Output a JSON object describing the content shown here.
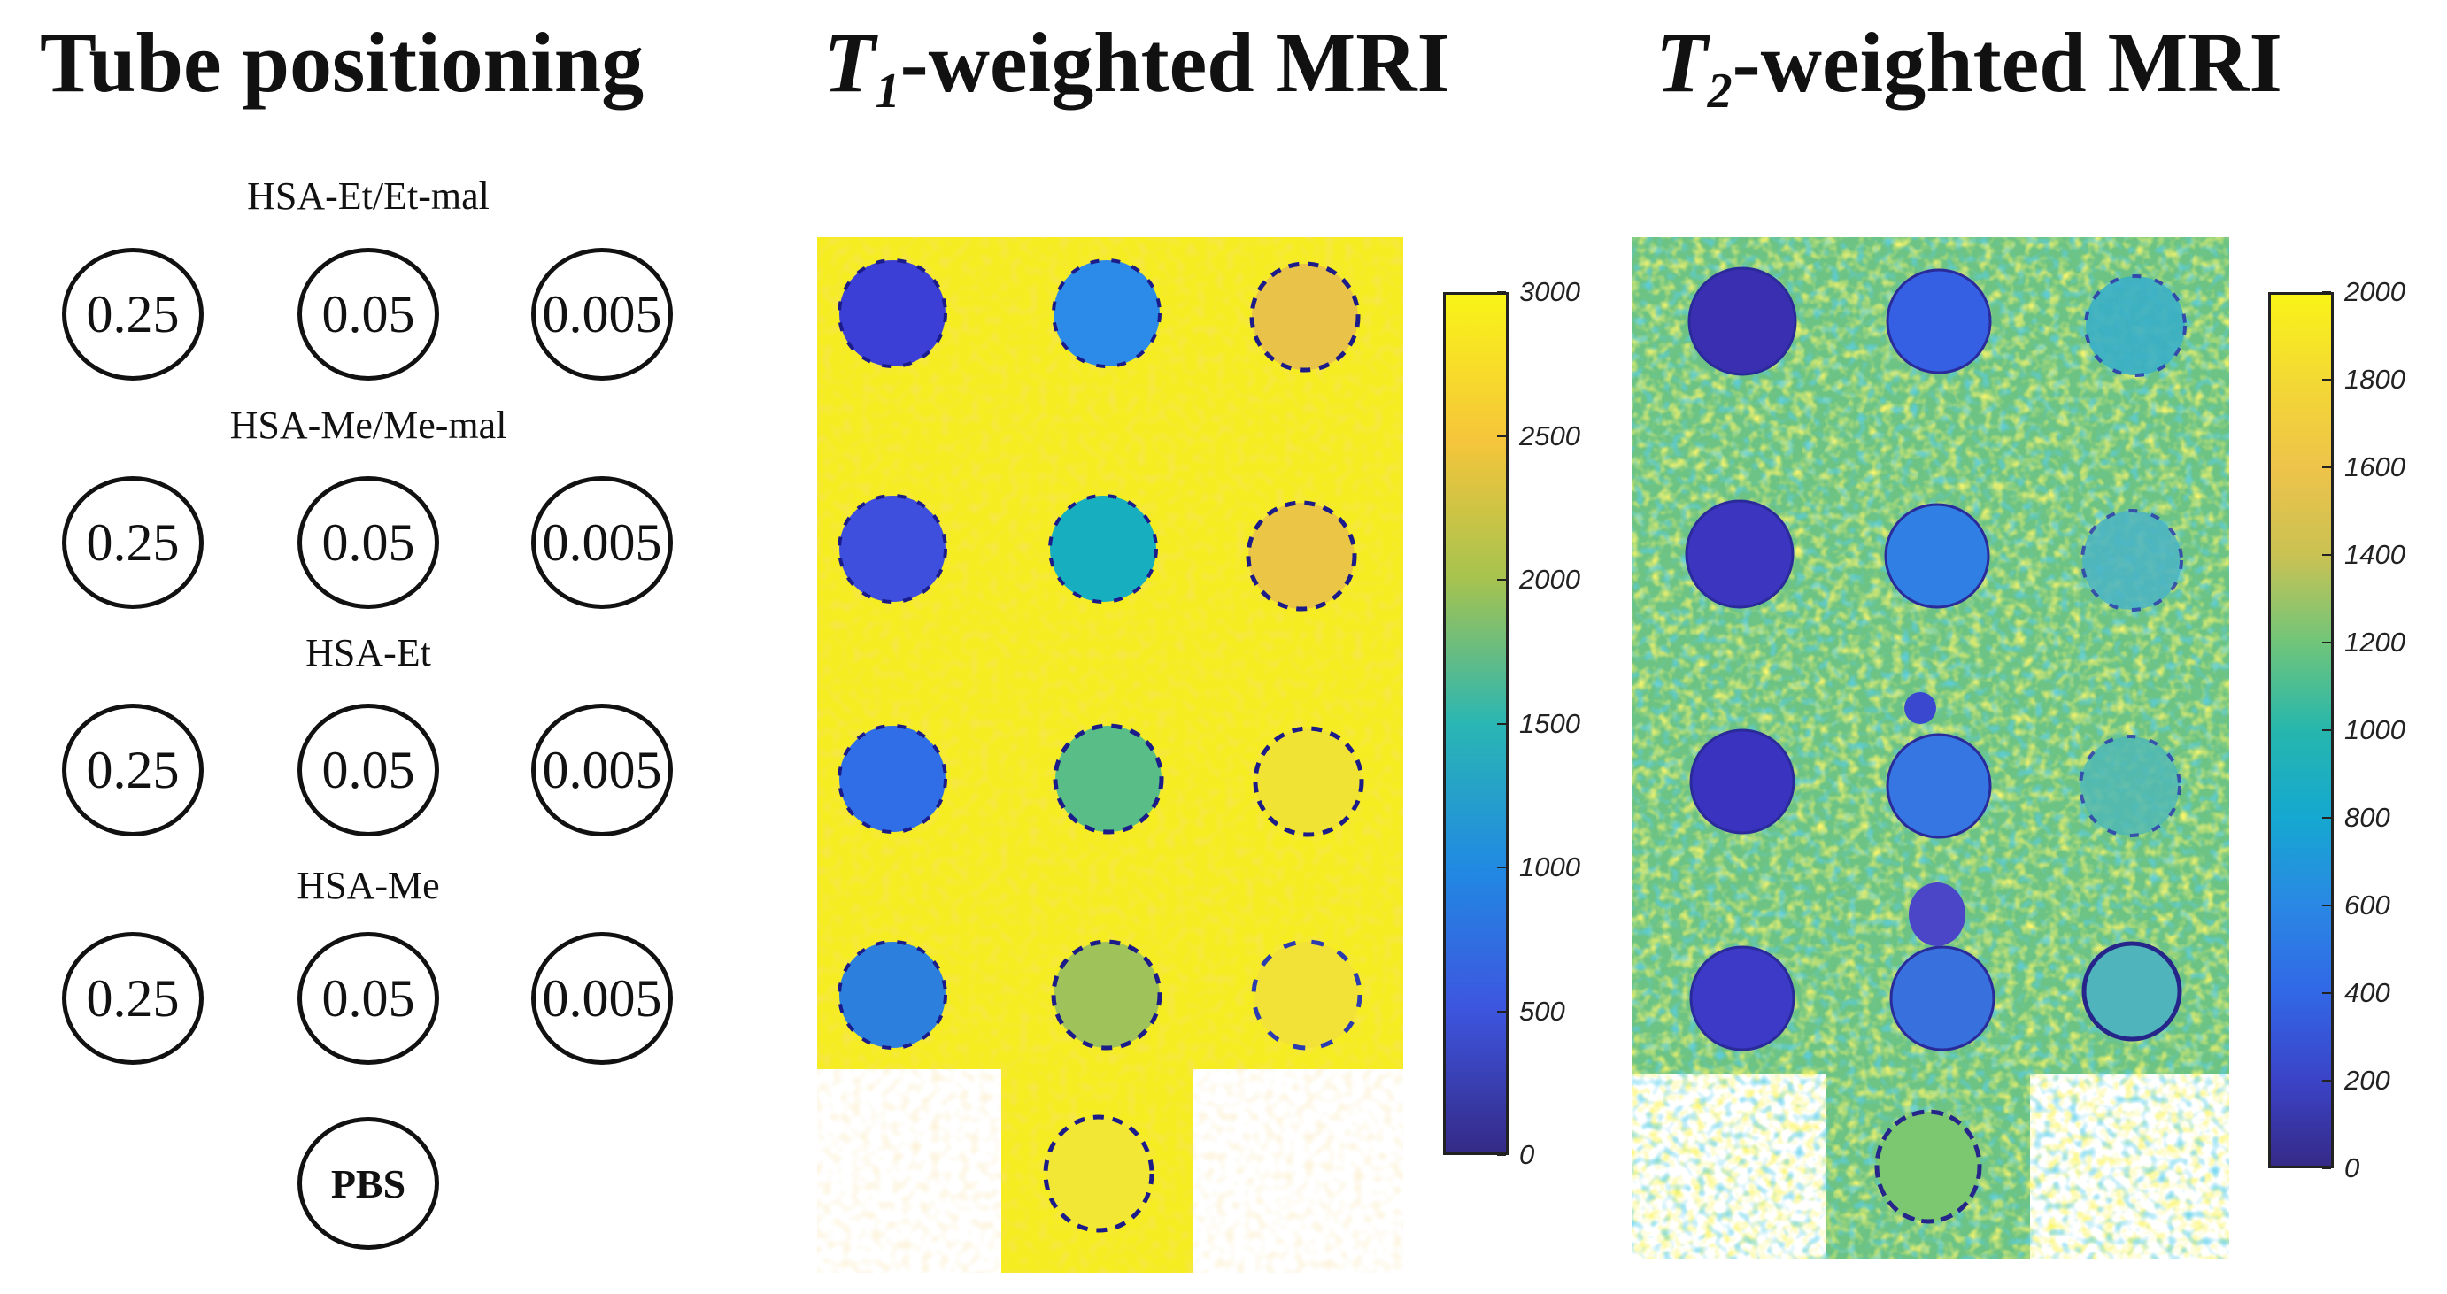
{
  "titles": {
    "tube_positioning": "Tube positioning",
    "t1_letter": "T",
    "t1_sub": "1",
    "t1_rest": "-weighted MRI",
    "t2_letter": "T",
    "t2_sub": "2",
    "t2_rest": "-weighted MRI"
  },
  "groups": [
    {
      "label": "HSA-Et/Et-mal",
      "concentrations": [
        "0.25",
        "0.05",
        "0.005"
      ]
    },
    {
      "label": "HSA-Me/Me-mal",
      "concentrations": [
        "0.25",
        "0.05",
        "0.005"
      ]
    },
    {
      "label": "HSA-Et",
      "concentrations": [
        "0.25",
        "0.05",
        "0.005"
      ]
    },
    {
      "label": "HSA-Me",
      "concentrations": [
        "0.25",
        "0.05",
        "0.005"
      ]
    }
  ],
  "control": {
    "label": "PBS"
  },
  "t1_colorbar": {
    "min": 0,
    "max": 3000,
    "ticks": [
      "3000",
      "2500",
      "2000",
      "1500",
      "1000",
      "500",
      "0"
    ]
  },
  "t2_colorbar": {
    "min": 0,
    "max": 2000,
    "ticks": [
      "2000",
      "1800",
      "1600",
      "1400",
      "1200",
      "1000",
      "800",
      "600",
      "400",
      "200",
      "0"
    ]
  },
  "colors": {
    "parula_low": "#352a87",
    "parula_blue": "#2c7fdd",
    "parula_teal": "#13b1b0",
    "parula_green": "#7fc36b",
    "parula_orange": "#f1b73b",
    "parula_high": "#f9f417"
  }
}
